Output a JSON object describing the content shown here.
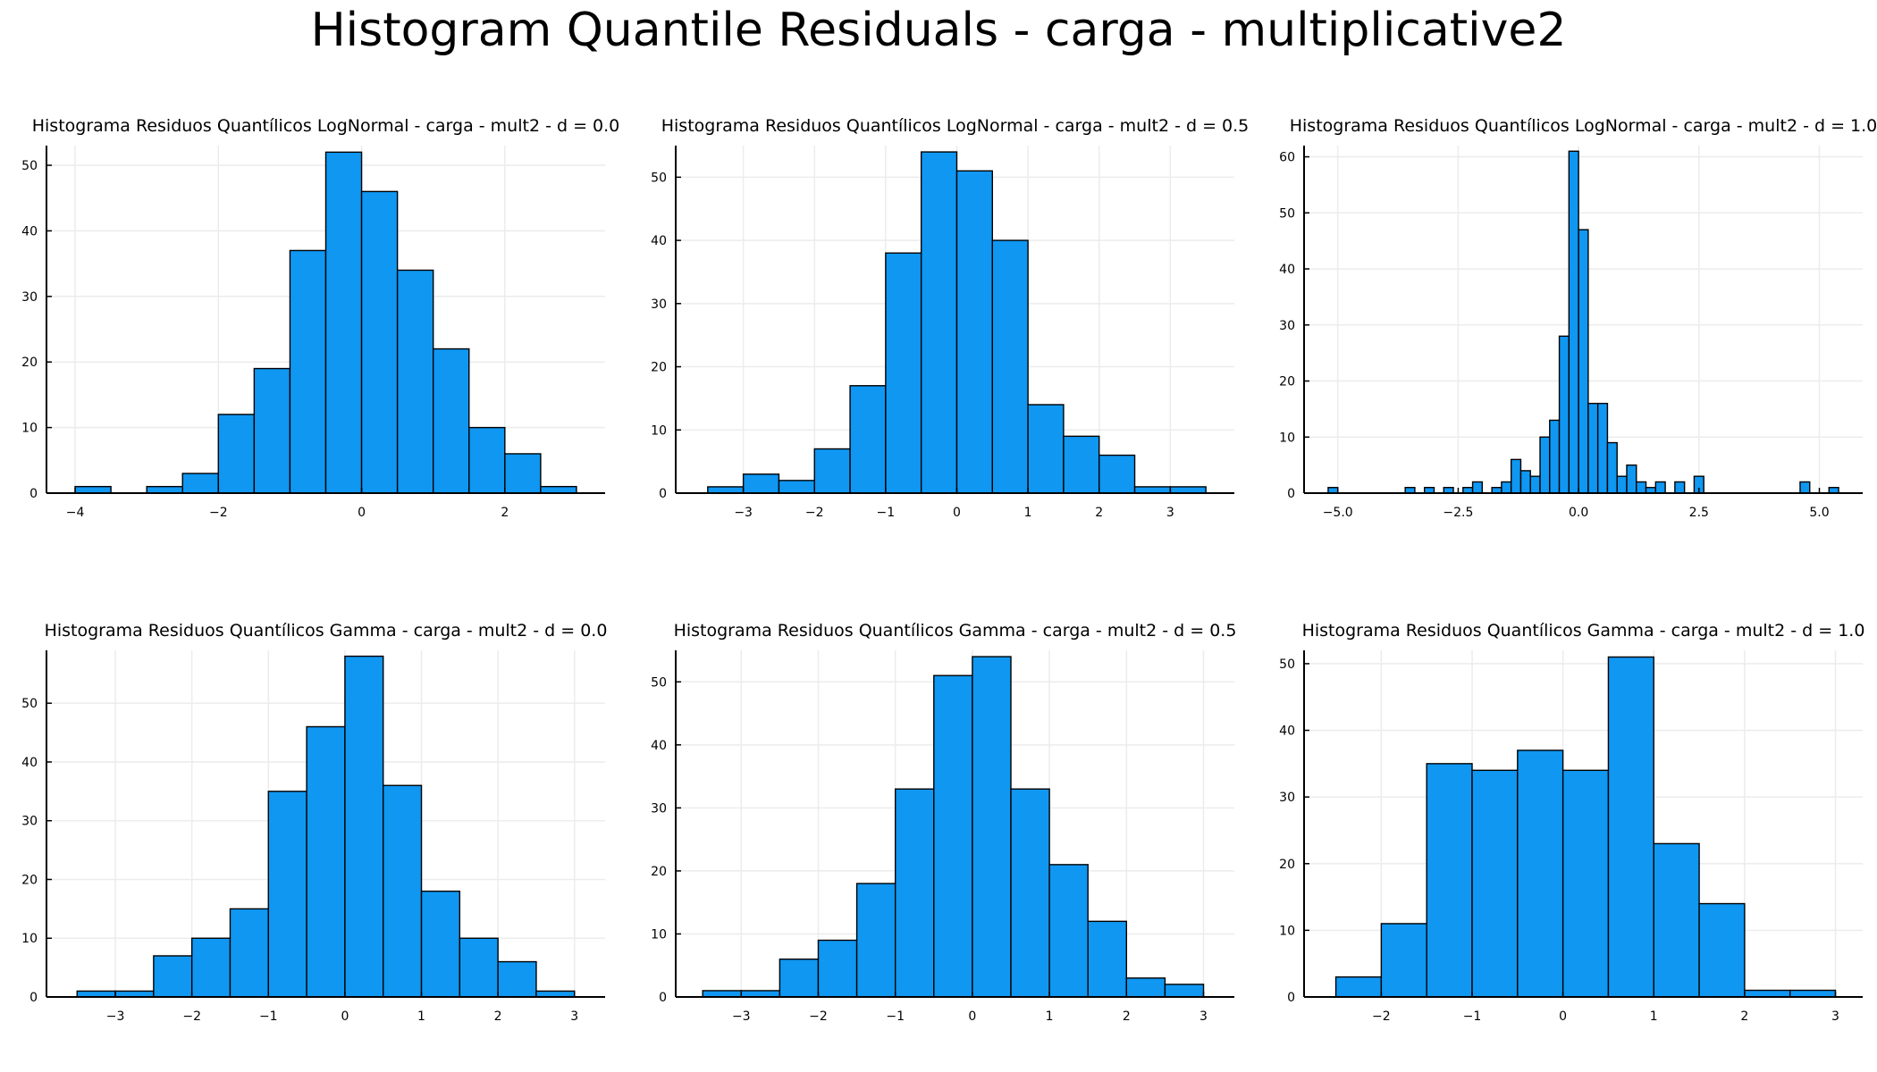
{
  "suptitle": "Histogram Quantile Residuals - carga - multiplicative2",
  "style": {
    "bar_fill": "#0f97f2",
    "bar_stroke": "#000000",
    "grid": "#ececec",
    "axis": "#000000"
  },
  "chart_data": [
    {
      "type": "bar",
      "title": "Histograma Residuos Quantílicos LogNormal - carga - mult2 - d = 0.0",
      "bin_edges": [
        -4,
        -3.5,
        -3,
        -2.5,
        -2,
        -1.5,
        -1,
        -0.5,
        0,
        0.5,
        1,
        1.5,
        2,
        2.5,
        3
      ],
      "values": [
        1,
        0,
        1,
        3,
        12,
        19,
        37,
        52,
        46,
        34,
        22,
        10,
        6,
        1
      ],
      "xlim": [
        -4.4,
        3.4
      ],
      "ylim": [
        0,
        53
      ],
      "xticks": [
        -4,
        -2,
        0,
        2
      ],
      "xtick_labels": [
        "−4",
        "−2",
        "0",
        "2"
      ],
      "yticks": [
        0,
        10,
        20,
        30,
        40,
        50
      ],
      "ytick_labels": [
        "0",
        "10",
        "20",
        "30",
        "40",
        "50"
      ],
      "grid": true
    },
    {
      "type": "bar",
      "title": "Histograma Residuos Quantílicos LogNormal - carga - mult2 - d = 0.5",
      "bin_edges": [
        -3.5,
        -3,
        -2.5,
        -2,
        -1.5,
        -1,
        -0.5,
        0,
        0.5,
        1,
        1.5,
        2,
        2.5,
        3,
        3.5
      ],
      "values": [
        1,
        3,
        2,
        7,
        17,
        38,
        54,
        51,
        40,
        14,
        9,
        6,
        1,
        1
      ],
      "xlim": [
        -3.95,
        3.9
      ],
      "ylim": [
        0,
        55
      ],
      "xticks": [
        -3,
        -2,
        -1,
        0,
        1,
        2,
        3
      ],
      "xtick_labels": [
        "−3",
        "−2",
        "−1",
        "0",
        "1",
        "2",
        "3"
      ],
      "yticks": [
        0,
        10,
        20,
        30,
        40,
        50
      ],
      "ytick_labels": [
        "0",
        "10",
        "20",
        "30",
        "40",
        "50"
      ],
      "grid": true
    },
    {
      "type": "bar",
      "title": "Histograma Residuos Quantílicos LogNormal - carga - mult2 - d = 1.0",
      "bin_edges": [
        -5.2,
        -5.0,
        -4.8,
        -4.6,
        -4.4,
        -4.2,
        -4.0,
        -3.8,
        -3.6,
        -3.4,
        -3.2,
        -3.0,
        -2.8,
        -2.6,
        -2.4,
        -2.2,
        -2.0,
        -1.8,
        -1.6,
        -1.4,
        -1.2,
        -1.0,
        -0.8,
        -0.6,
        -0.4,
        -0.2,
        0.0,
        0.2,
        0.4,
        0.6,
        0.8,
        1.0,
        1.2,
        1.4,
        1.6,
        1.8,
        2.0,
        2.2,
        2.4,
        2.6,
        2.8,
        3.0,
        3.2,
        3.4,
        3.6,
        3.8,
        4.0,
        4.2,
        4.4,
        4.6,
        4.8,
        5.0,
        5.2,
        5.4
      ],
      "values": [
        1,
        0,
        0,
        0,
        0,
        0,
        0,
        0,
        1,
        0,
        1,
        0,
        1,
        0,
        1,
        2,
        0,
        1,
        2,
        6,
        4,
        3,
        10,
        13,
        28,
        61,
        47,
        16,
        16,
        9,
        3,
        5,
        2,
        1,
        2,
        0,
        2,
        0,
        3,
        0,
        0,
        0,
        0,
        0,
        0,
        0,
        0,
        0,
        0,
        2,
        0,
        0,
        1
      ],
      "xlim": [
        -5.7,
        5.9
      ],
      "ylim": [
        0,
        62
      ],
      "xticks": [
        -5,
        -2.5,
        0,
        2.5,
        5
      ],
      "xtick_labels": [
        "−5.0",
        "−2.5",
        "0.0",
        "2.5",
        "5.0"
      ],
      "yticks": [
        0,
        10,
        20,
        30,
        40,
        50,
        60
      ],
      "ytick_labels": [
        "0",
        "10",
        "20",
        "30",
        "40",
        "50",
        "60"
      ],
      "grid": true
    },
    {
      "type": "bar",
      "title": "Histograma Residuos Quantílicos Gamma - carga - mult2 - d = 0.0",
      "bin_edges": [
        -3.5,
        -3,
        -2.5,
        -2,
        -1.5,
        -1,
        -0.5,
        0,
        0.5,
        1,
        1.5,
        2,
        2.5,
        3
      ],
      "values": [
        1,
        1,
        7,
        10,
        15,
        35,
        46,
        58,
        36,
        18,
        10,
        6,
        1
      ],
      "xlim": [
        -3.9,
        3.4
      ],
      "ylim": [
        0,
        59
      ],
      "xticks": [
        -3,
        -2,
        -1,
        0,
        1,
        2,
        3
      ],
      "xtick_labels": [
        "−3",
        "−2",
        "−1",
        "0",
        "1",
        "2",
        "3"
      ],
      "yticks": [
        0,
        10,
        20,
        30,
        40,
        50
      ],
      "ytick_labels": [
        "0",
        "10",
        "20",
        "30",
        "40",
        "50"
      ],
      "grid": true
    },
    {
      "type": "bar",
      "title": "Histograma Residuos Quantílicos Gamma - carga - mult2 - d = 0.5",
      "bin_edges": [
        -3.5,
        -3,
        -2.5,
        -2,
        -1.5,
        -1,
        -0.5,
        0,
        0.5,
        1,
        1.5,
        2,
        2.5,
        3
      ],
      "values": [
        1,
        1,
        6,
        9,
        18,
        33,
        51,
        54,
        33,
        21,
        12,
        3,
        2
      ],
      "xlim": [
        -3.85,
        3.4
      ],
      "ylim": [
        0,
        55
      ],
      "xticks": [
        -3,
        -2,
        -1,
        0,
        1,
        2,
        3
      ],
      "xtick_labels": [
        "−3",
        "−2",
        "−1",
        "0",
        "1",
        "2",
        "3"
      ],
      "yticks": [
        0,
        10,
        20,
        30,
        40,
        50
      ],
      "ytick_labels": [
        "0",
        "10",
        "20",
        "30",
        "40",
        "50"
      ],
      "grid": true
    },
    {
      "type": "bar",
      "title": "Histograma Residuos Quantílicos Gamma - carga - mult2 - d = 1.0",
      "bin_edges": [
        -2.5,
        -2,
        -1.5,
        -1,
        -0.5,
        0,
        0.5,
        1,
        1.5,
        2,
        2.5,
        3
      ],
      "values": [
        3,
        11,
        35,
        34,
        37,
        34,
        51,
        23,
        14,
        1,
        1
      ],
      "xlim": [
        -2.85,
        3.3
      ],
      "ylim": [
        0,
        52
      ],
      "xticks": [
        -2,
        -1,
        0,
        1,
        2,
        3
      ],
      "xtick_labels": [
        "−2",
        "−1",
        "0",
        "1",
        "2",
        "3"
      ],
      "yticks": [
        0,
        10,
        20,
        30,
        40,
        50
      ],
      "ytick_labels": [
        "0",
        "10",
        "20",
        "30",
        "40",
        "50"
      ],
      "grid": true
    }
  ]
}
